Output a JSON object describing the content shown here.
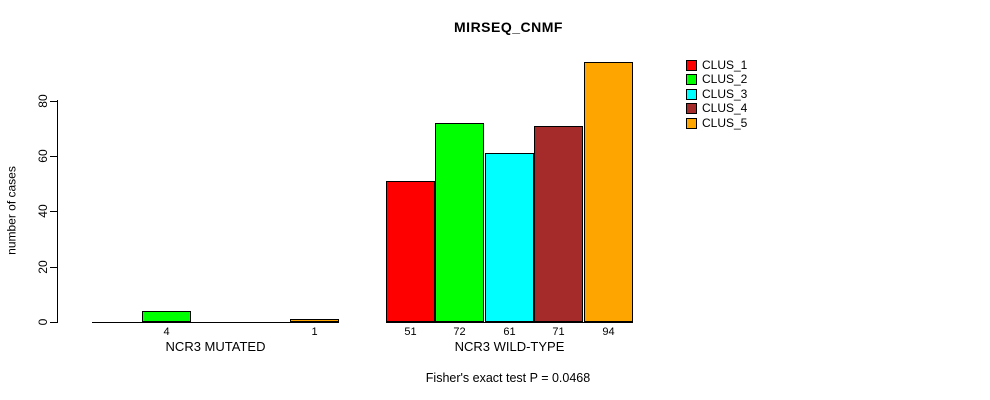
{
  "page": {
    "background": "#FFFFFF"
  },
  "chart_data": {
    "type": "bar",
    "title": "MIRSEQ_CNMF",
    "ylabel": "number of cases",
    "xlabel": "",
    "yticks": [
      0,
      20,
      40,
      60,
      80
    ],
    "ylim": [
      0,
      94
    ],
    "grid": false,
    "legend_position": "right",
    "categories": [
      "NCR3 MUTATED",
      "NCR3 WILD-TYPE"
    ],
    "series": [
      {
        "name": "CLUS_1",
        "color": "#FF0000",
        "values": [
          0,
          51
        ],
        "bar_labels": [
          "",
          "51"
        ]
      },
      {
        "name": "CLUS_2",
        "color": "#00FF00",
        "values": [
          4,
          72
        ],
        "bar_labels": [
          "4",
          "72"
        ]
      },
      {
        "name": "CLUS_3",
        "color": "#00FFFF",
        "values": [
          0,
          61
        ],
        "bar_labels": [
          "",
          "61"
        ]
      },
      {
        "name": "CLUS_4",
        "color": "#A52A2A",
        "values": [
          0,
          71
        ],
        "bar_labels": [
          "",
          "71"
        ]
      },
      {
        "name": "CLUS_5",
        "color": "#FFA500",
        "values": [
          1,
          94
        ],
        "bar_labels": [
          "1",
          "94"
        ]
      }
    ],
    "footnote": "Fisher's exact test P = 0.0468"
  }
}
